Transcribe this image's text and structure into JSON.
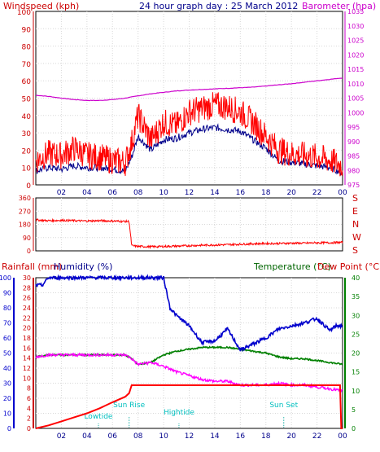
{
  "chart_data": [
    {
      "id": "top",
      "type": "line",
      "title": "24 hour graph day : 25 March 2012",
      "ylabel_left": "Windspeed (kph)",
      "ylabel_right": "Barometer (hpa)",
      "x_ticks": [
        "02",
        "04",
        "06",
        "08",
        "10",
        "12",
        "14",
        "16",
        "18",
        "20",
        "22",
        "00"
      ],
      "xlim": [
        0,
        24
      ],
      "ylim_left": [
        0,
        100
      ],
      "ylim_right": [
        975,
        1035
      ],
      "y_ticks_left": [
        "0",
        "10",
        "20",
        "30",
        "40",
        "50",
        "60",
        "70",
        "80",
        "90",
        "100"
      ],
      "y_ticks_right": [
        "975",
        "980",
        "985",
        "990",
        "995",
        "1000",
        "1005",
        "1010",
        "1015",
        "1020",
        "1025",
        "1030",
        "1035"
      ],
      "colors": {
        "windspeed": "#ff0000",
        "average": "#00008b",
        "barometer": "#cc00cc"
      },
      "series": [
        {
          "key": "windspeed_gust",
          "axis": "left",
          "x": [
            0,
            1,
            2,
            3,
            4,
            5,
            6,
            7,
            7.5,
            8,
            9,
            10,
            11,
            12,
            13,
            14,
            15,
            16,
            17,
            18,
            19,
            20,
            21,
            22,
            23,
            24
          ],
          "y": [
            14,
            18,
            17,
            21,
            17,
            16,
            14,
            13,
            24,
            40,
            26,
            36,
            34,
            42,
            44,
            46,
            45,
            42,
            36,
            28,
            20,
            18,
            17,
            16,
            14,
            11
          ]
        },
        {
          "key": "windspeed_avg",
          "axis": "left",
          "x": [
            0,
            1,
            2,
            3,
            4,
            5,
            6,
            7,
            7.5,
            8,
            9,
            10,
            11,
            12,
            13,
            14,
            15,
            16,
            17,
            18,
            19,
            20,
            21,
            22,
            23,
            24
          ],
          "y": [
            8,
            10,
            9,
            11,
            10,
            10,
            9,
            8,
            16,
            28,
            20,
            26,
            27,
            30,
            32,
            33,
            32,
            31,
            26,
            21,
            14,
            13,
            12,
            11,
            10,
            7
          ]
        },
        {
          "key": "barometer",
          "axis": "right",
          "x": [
            0,
            1,
            2,
            3,
            4,
            5,
            6,
            7,
            8,
            9,
            10,
            11,
            12,
            13,
            14,
            15,
            16,
            17,
            18,
            19,
            20,
            21,
            22,
            23,
            24
          ],
          "y": [
            1006,
            1005.6,
            1005,
            1004.5,
            1004.2,
            1004.2,
            1004.5,
            1005,
            1005.8,
            1006.5,
            1007,
            1007.5,
            1007.8,
            1008,
            1008.2,
            1008.4,
            1008.6,
            1008.8,
            1009.2,
            1009.6,
            1010,
            1010.5,
            1011,
            1011.5,
            1012
          ]
        }
      ]
    },
    {
      "id": "mid",
      "type": "line",
      "ylabel_right": [
        "S",
        "E",
        "N",
        "W",
        "S"
      ],
      "x_ticks": [
        "02",
        "04",
        "06",
        "08",
        "10",
        "12",
        "14",
        "16",
        "18",
        "20",
        "22",
        "00"
      ],
      "xlim": [
        0,
        24
      ],
      "ylim": [
        0,
        360
      ],
      "y_ticks": [
        "0",
        "90",
        "180",
        "270",
        "360"
      ],
      "colors": {
        "direction": "#ff0000"
      },
      "series": [
        {
          "key": "wind_direction",
          "x": [
            0,
            1,
            2,
            3,
            4,
            5,
            6,
            7,
            7.3,
            7.5,
            8,
            9,
            10,
            11,
            12,
            13,
            14,
            15,
            16,
            17,
            18,
            19,
            20,
            21,
            22,
            23,
            24
          ],
          "y": [
            210,
            205,
            208,
            205,
            203,
            205,
            203,
            200,
            200,
            35,
            30,
            28,
            30,
            32,
            35,
            38,
            40,
            42,
            45,
            48,
            50,
            50,
            52,
            52,
            55,
            55,
            58
          ]
        }
      ]
    },
    {
      "id": "bottom",
      "type": "line",
      "ylabel_left": "Rainfall (mm)",
      "ylabel_left2": "Humidity (%)",
      "ylabel_right": "Temperature (°C)",
      "ylabel_right2": "Dew Point (°C)",
      "x_ticks": [
        "02",
        "04",
        "06",
        "08",
        "10",
        "12",
        "14",
        "16",
        "18",
        "20",
        "22",
        "00"
      ],
      "xlim": [
        0,
        24
      ],
      "ylim_humidity": [
        0,
        100
      ],
      "ylim_rain": [
        0,
        30
      ],
      "ylim_temp": [
        0,
        40
      ],
      "y_ticks_humidity": [
        "0",
        "10",
        "20",
        "30",
        "40",
        "50",
        "60",
        "70",
        "80",
        "90",
        "100"
      ],
      "y_ticks_rain": [
        "0",
        "2",
        "4",
        "6",
        "8",
        "10",
        "12",
        "14",
        "16",
        "18",
        "20",
        "22",
        "24",
        "26",
        "28",
        "30"
      ],
      "y_ticks_temp": [
        "0",
        "5",
        "10",
        "15",
        "20",
        "25",
        "30",
        "35",
        "40"
      ],
      "colors": {
        "humidity": "#0000cd",
        "rain": "#ff0000",
        "temperature": "#008000",
        "dewpoint": "#ff00ff"
      },
      "series": [
        {
          "key": "humidity",
          "axis": "humidity",
          "x": [
            0,
            0.5,
            1,
            2,
            3,
            4,
            5,
            6,
            7,
            8,
            9,
            10,
            10.5,
            11,
            12,
            13,
            14,
            15,
            16,
            17,
            18,
            19,
            20,
            21,
            22,
            23,
            23.5,
            24
          ],
          "y": [
            95,
            95,
            100,
            100,
            100,
            100,
            100,
            100,
            100,
            100,
            100,
            100,
            80,
            75,
            68,
            57,
            58,
            66,
            52,
            56,
            60,
            66,
            68,
            70,
            73,
            65,
            68,
            68
          ]
        },
        {
          "key": "temperature",
          "axis": "temp",
          "x": [
            0,
            1,
            2,
            3,
            4,
            5,
            6,
            7,
            7.5,
            8,
            9,
            10,
            11,
            12,
            13,
            14,
            15,
            16,
            17,
            18,
            19,
            20,
            21,
            22,
            23,
            24
          ],
          "y": [
            19,
            19.5,
            19.5,
            19.5,
            19.5,
            19.5,
            19.5,
            19.5,
            18.5,
            17,
            17.5,
            19.5,
            20.5,
            21,
            21.5,
            21.5,
            21.5,
            21,
            20.5,
            20,
            19,
            18.5,
            18.5,
            18,
            17.5,
            17
          ]
        },
        {
          "key": "dewpoint",
          "axis": "temp",
          "x": [
            0,
            1,
            2,
            3,
            4,
            5,
            6,
            7,
            7.5,
            8,
            9,
            10,
            11,
            12,
            13,
            14,
            15,
            16,
            17,
            18,
            19,
            20,
            21,
            22,
            23,
            24
          ],
          "y": [
            19,
            19.5,
            19.5,
            19.5,
            19.5,
            19.5,
            19.5,
            19.5,
            18.5,
            17,
            17.5,
            16.5,
            15,
            14,
            13,
            12.5,
            12.5,
            11.5,
            11.5,
            11.5,
            12,
            11.5,
            11.5,
            11,
            10.5,
            10
          ]
        },
        {
          "key": "rainfall",
          "axis": "rain",
          "x": [
            0,
            1,
            2,
            3,
            4,
            5,
            6,
            7,
            7.3,
            7.5,
            8,
            9,
            10,
            11,
            12,
            13,
            14,
            15,
            16,
            17,
            18,
            19,
            20,
            21,
            22,
            23,
            23.8,
            23.9,
            24
          ],
          "y": [
            0,
            0.6,
            1.4,
            2.2,
            3,
            4,
            5.2,
            6.3,
            7,
            8.6,
            8.6,
            8.6,
            8.6,
            8.6,
            8.6,
            8.6,
            8.6,
            8.6,
            8.6,
            8.6,
            8.6,
            8.6,
            8.6,
            8.6,
            8.6,
            8.6,
            8.6,
            0,
            0
          ]
        }
      ],
      "annotations": [
        {
          "text": "Sun Rise",
          "x": 7.3
        },
        {
          "text": "Hightide",
          "x": 11.2
        },
        {
          "text": "Sun Set",
          "x": 19.4
        },
        {
          "text": "Lowtide",
          "x": 4.9
        }
      ]
    }
  ]
}
